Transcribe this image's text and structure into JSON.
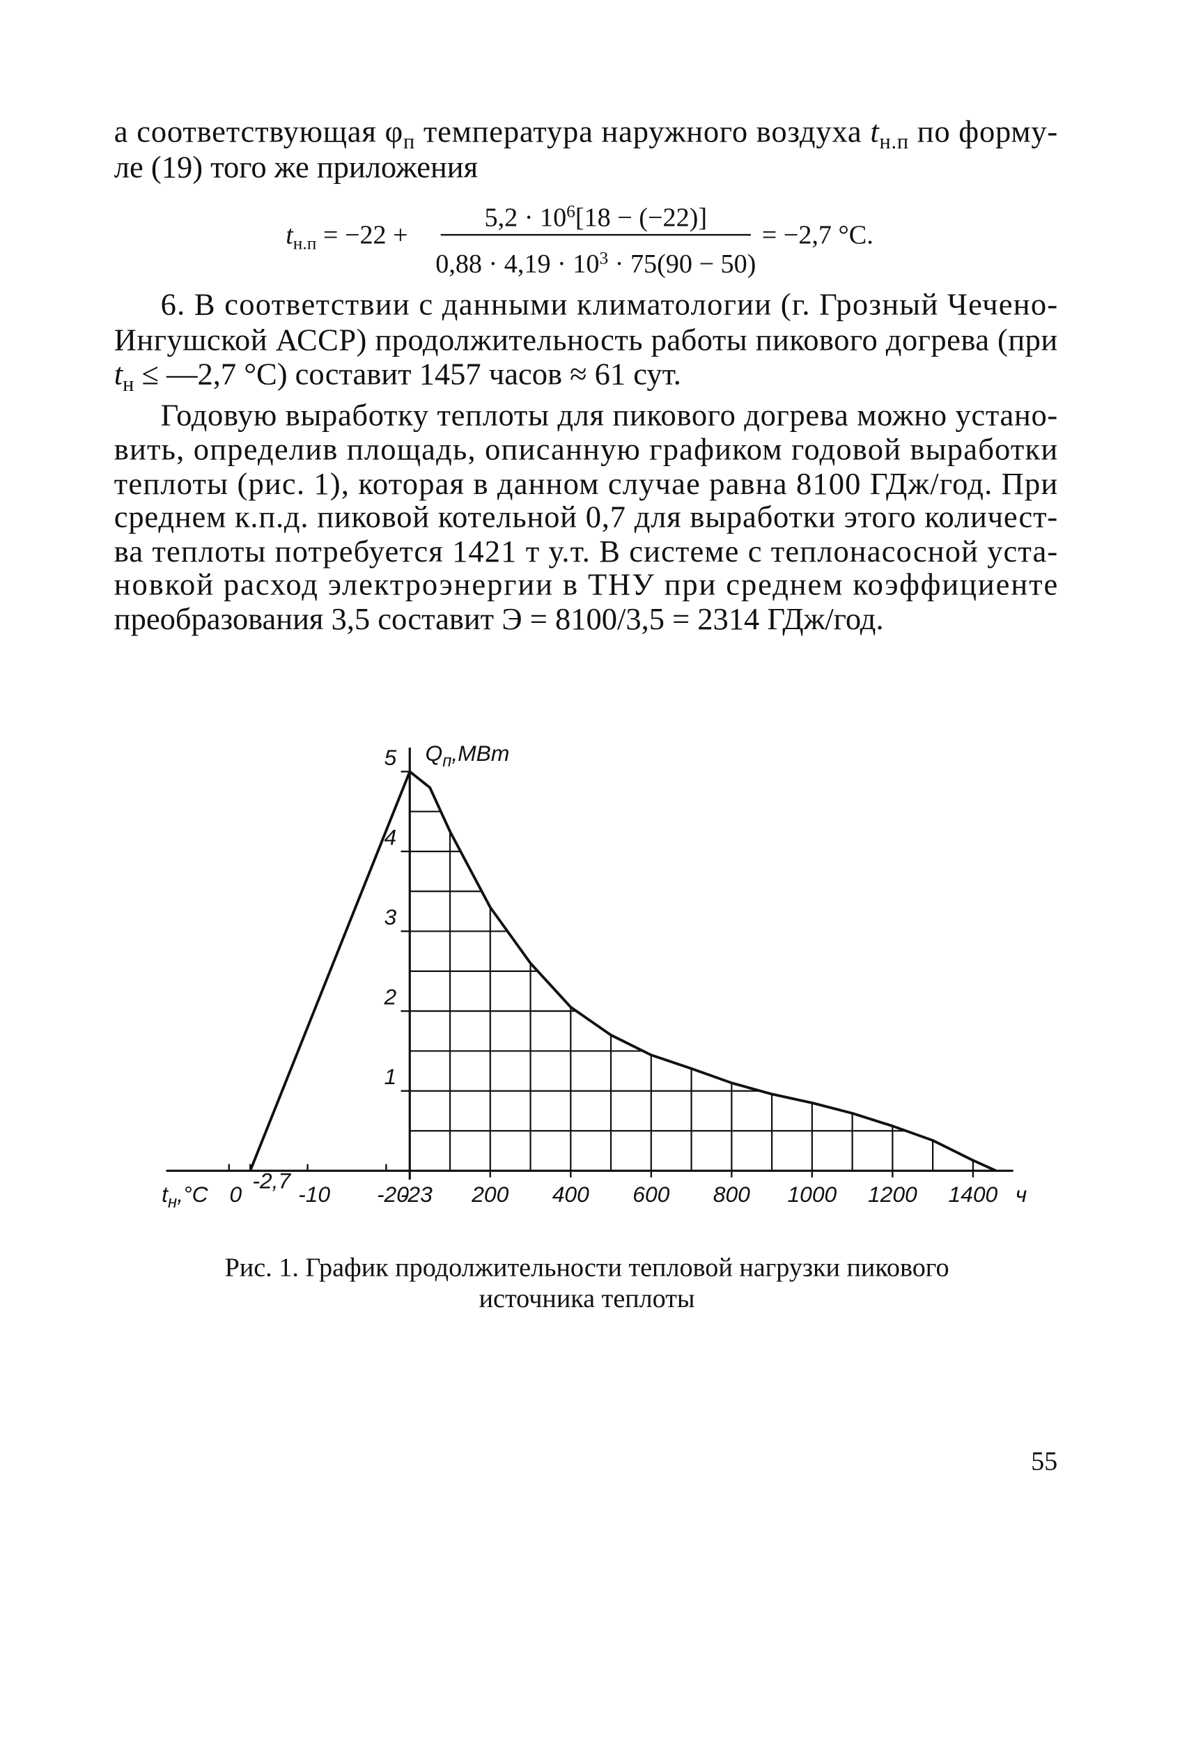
{
  "paragraph_1": {
    "lines": [
      [
        "а соответствующая φ",
        "п",
        " температура наружного воздуха ",
        "t",
        "н.п",
        " по форму-"
      ],
      [
        "ле (19) того же приложения"
      ]
    ]
  },
  "formula": {
    "lhs": [
      "t",
      "н.п",
      " = −22 + "
    ],
    "numerator": [
      "5,2 · 10",
      "6",
      "[18 − (−22)]"
    ],
    "denominator": [
      "0,88 · 4,19 · 10",
      "3",
      " · 75(90 − 50)"
    ],
    "rhs": "= −2,7 °C."
  },
  "paragraph_2": {
    "lines": [
      [
        "6. В соответствии с данными климатологии (г. Грозный Чечено-"
      ],
      [
        "Ингушской АССР) продолжительность работы пикового догрева (при"
      ],
      [
        "t",
        "н",
        " ≤ —2,7 °C) составит 1457 часов ≈ 61 сут."
      ]
    ]
  },
  "paragraph_3": {
    "lines": [
      [
        "Годовую выработку теплоты для пикового догрева можно устано-"
      ],
      [
        "вить, определив площадь, описанную графиком годовой выработки"
      ],
      [
        "теплоты (рис. 1), которая в данном случае равна 8100 ГДж/год. При"
      ],
      [
        "среднем к.п.д. пиковой котельной 0,7 для выработки этого количест-"
      ],
      [
        "ва теплоты потребуется 1421 т у.т. В системе с теплонасосной уста-"
      ],
      [
        "новкой расход электроэнергии в ТНУ при среднем коэффициенте"
      ],
      [
        "преобразования 3,5 составит Э = 8100/3,5 = 2314 ГДж/год."
      ]
    ]
  },
  "chart_data": {
    "type": "line",
    "y_label": [
      "Q",
      "п",
      ",МВт"
    ],
    "x_label": [
      "t",
      "н",
      ",°C"
    ],
    "x_unit": "ч",
    "xlim": [
      0,
      1500
    ],
    "xticks": [
      200,
      400,
      600,
      800,
      1000,
      1200,
      1400
    ],
    "x2lim": [
      -23,
      8
    ],
    "x2ticks": [
      0,
      {
        "value": -2.7,
        "label": "-2,7"
      },
      -10,
      -20,
      -23
    ],
    "ylim": [
      0,
      5.3
    ],
    "yticks": [
      1,
      2,
      3,
      4,
      5
    ],
    "xgrid": [
      100,
      200,
      300,
      400,
      500,
      600,
      700,
      800,
      900,
      1000,
      1100,
      1200,
      1300,
      1400
    ],
    "ygrid": [
      0.5,
      1,
      1.5,
      2,
      2.5,
      3,
      3.5,
      4,
      4.5,
      5
    ],
    "color": "#111111",
    "series": [
      {
        "x": [
          0,
          50,
          100,
          200,
          300,
          400,
          500,
          600,
          700,
          800,
          900,
          1000,
          1100,
          1200,
          1300,
          1400,
          1457
        ],
        "values": [
          5,
          4.8,
          4.25,
          3.3,
          2.6,
          2.05,
          1.7,
          1.45,
          1.28,
          1.1,
          0.96,
          0.85,
          0.72,
          0.56,
          0.38,
          0.13,
          0
        ]
      },
      {
        "axis": "x2",
        "x": [
          -2.7,
          -23
        ],
        "values": [
          0,
          5
        ]
      }
    ]
  },
  "caption": {
    "lines": [
      "Рис. 1. График продолжительности тепловой нагрузки пикового",
      "источника теплоты"
    ]
  },
  "page_number": "55"
}
